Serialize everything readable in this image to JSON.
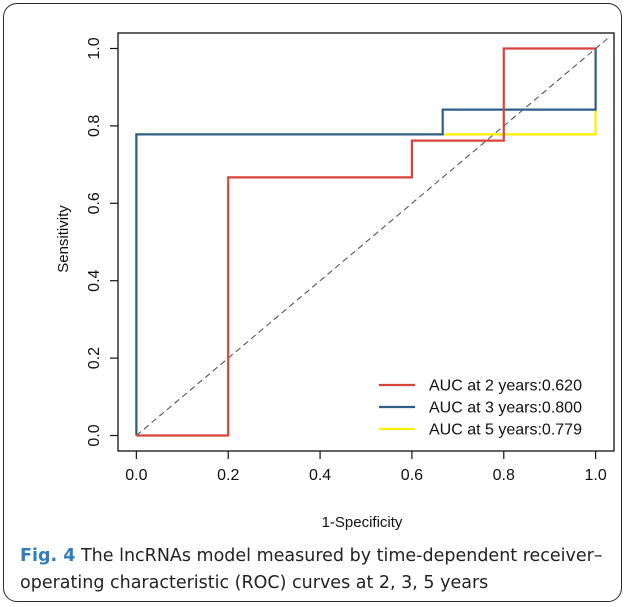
{
  "chart_data": {
    "type": "line",
    "title": "",
    "xlabel": "1-Specificity",
    "ylabel": "Sensitivity",
    "xlim": [
      0,
      1
    ],
    "ylim": [
      0,
      1
    ],
    "xticks": [
      "0.0",
      "0.2",
      "0.4",
      "0.6",
      "0.8",
      "1.0"
    ],
    "yticks": [
      "0.0",
      "0.2",
      "0.4",
      "0.6",
      "0.8",
      "1.0"
    ],
    "grid": false,
    "legend_position": "bottom-right",
    "diagonal_reference": true,
    "series": [
      {
        "name": "AUC at 2 years:0.620",
        "color": "#d9443a",
        "x": [
          0,
          0.2,
          0.2,
          0.6,
          0.6,
          0.8,
          0.8,
          1.0
        ],
        "y": [
          0,
          0,
          0.667,
          0.667,
          0.762,
          0.762,
          1.0,
          1.0
        ]
      },
      {
        "name": "AUC at 3 years:0.800",
        "color": "#2e5f8a",
        "x": [
          0,
          0,
          0.667,
          0.667,
          1.0,
          1.0
        ],
        "y": [
          0,
          0.778,
          0.778,
          0.842,
          0.842,
          1.0
        ]
      },
      {
        "name": "AUC at 5 years:0.779",
        "color": "#ffee00",
        "x": [
          0,
          0,
          1.0,
          1.0
        ],
        "y": [
          0,
          0.778,
          0.778,
          1.0
        ]
      }
    ]
  },
  "caption": {
    "label": "Fig. 4",
    "text": " The lncRNAs model measured by time-dependent receiver–operating characteristic (ROC) curves at 2, 3, 5 years"
  }
}
